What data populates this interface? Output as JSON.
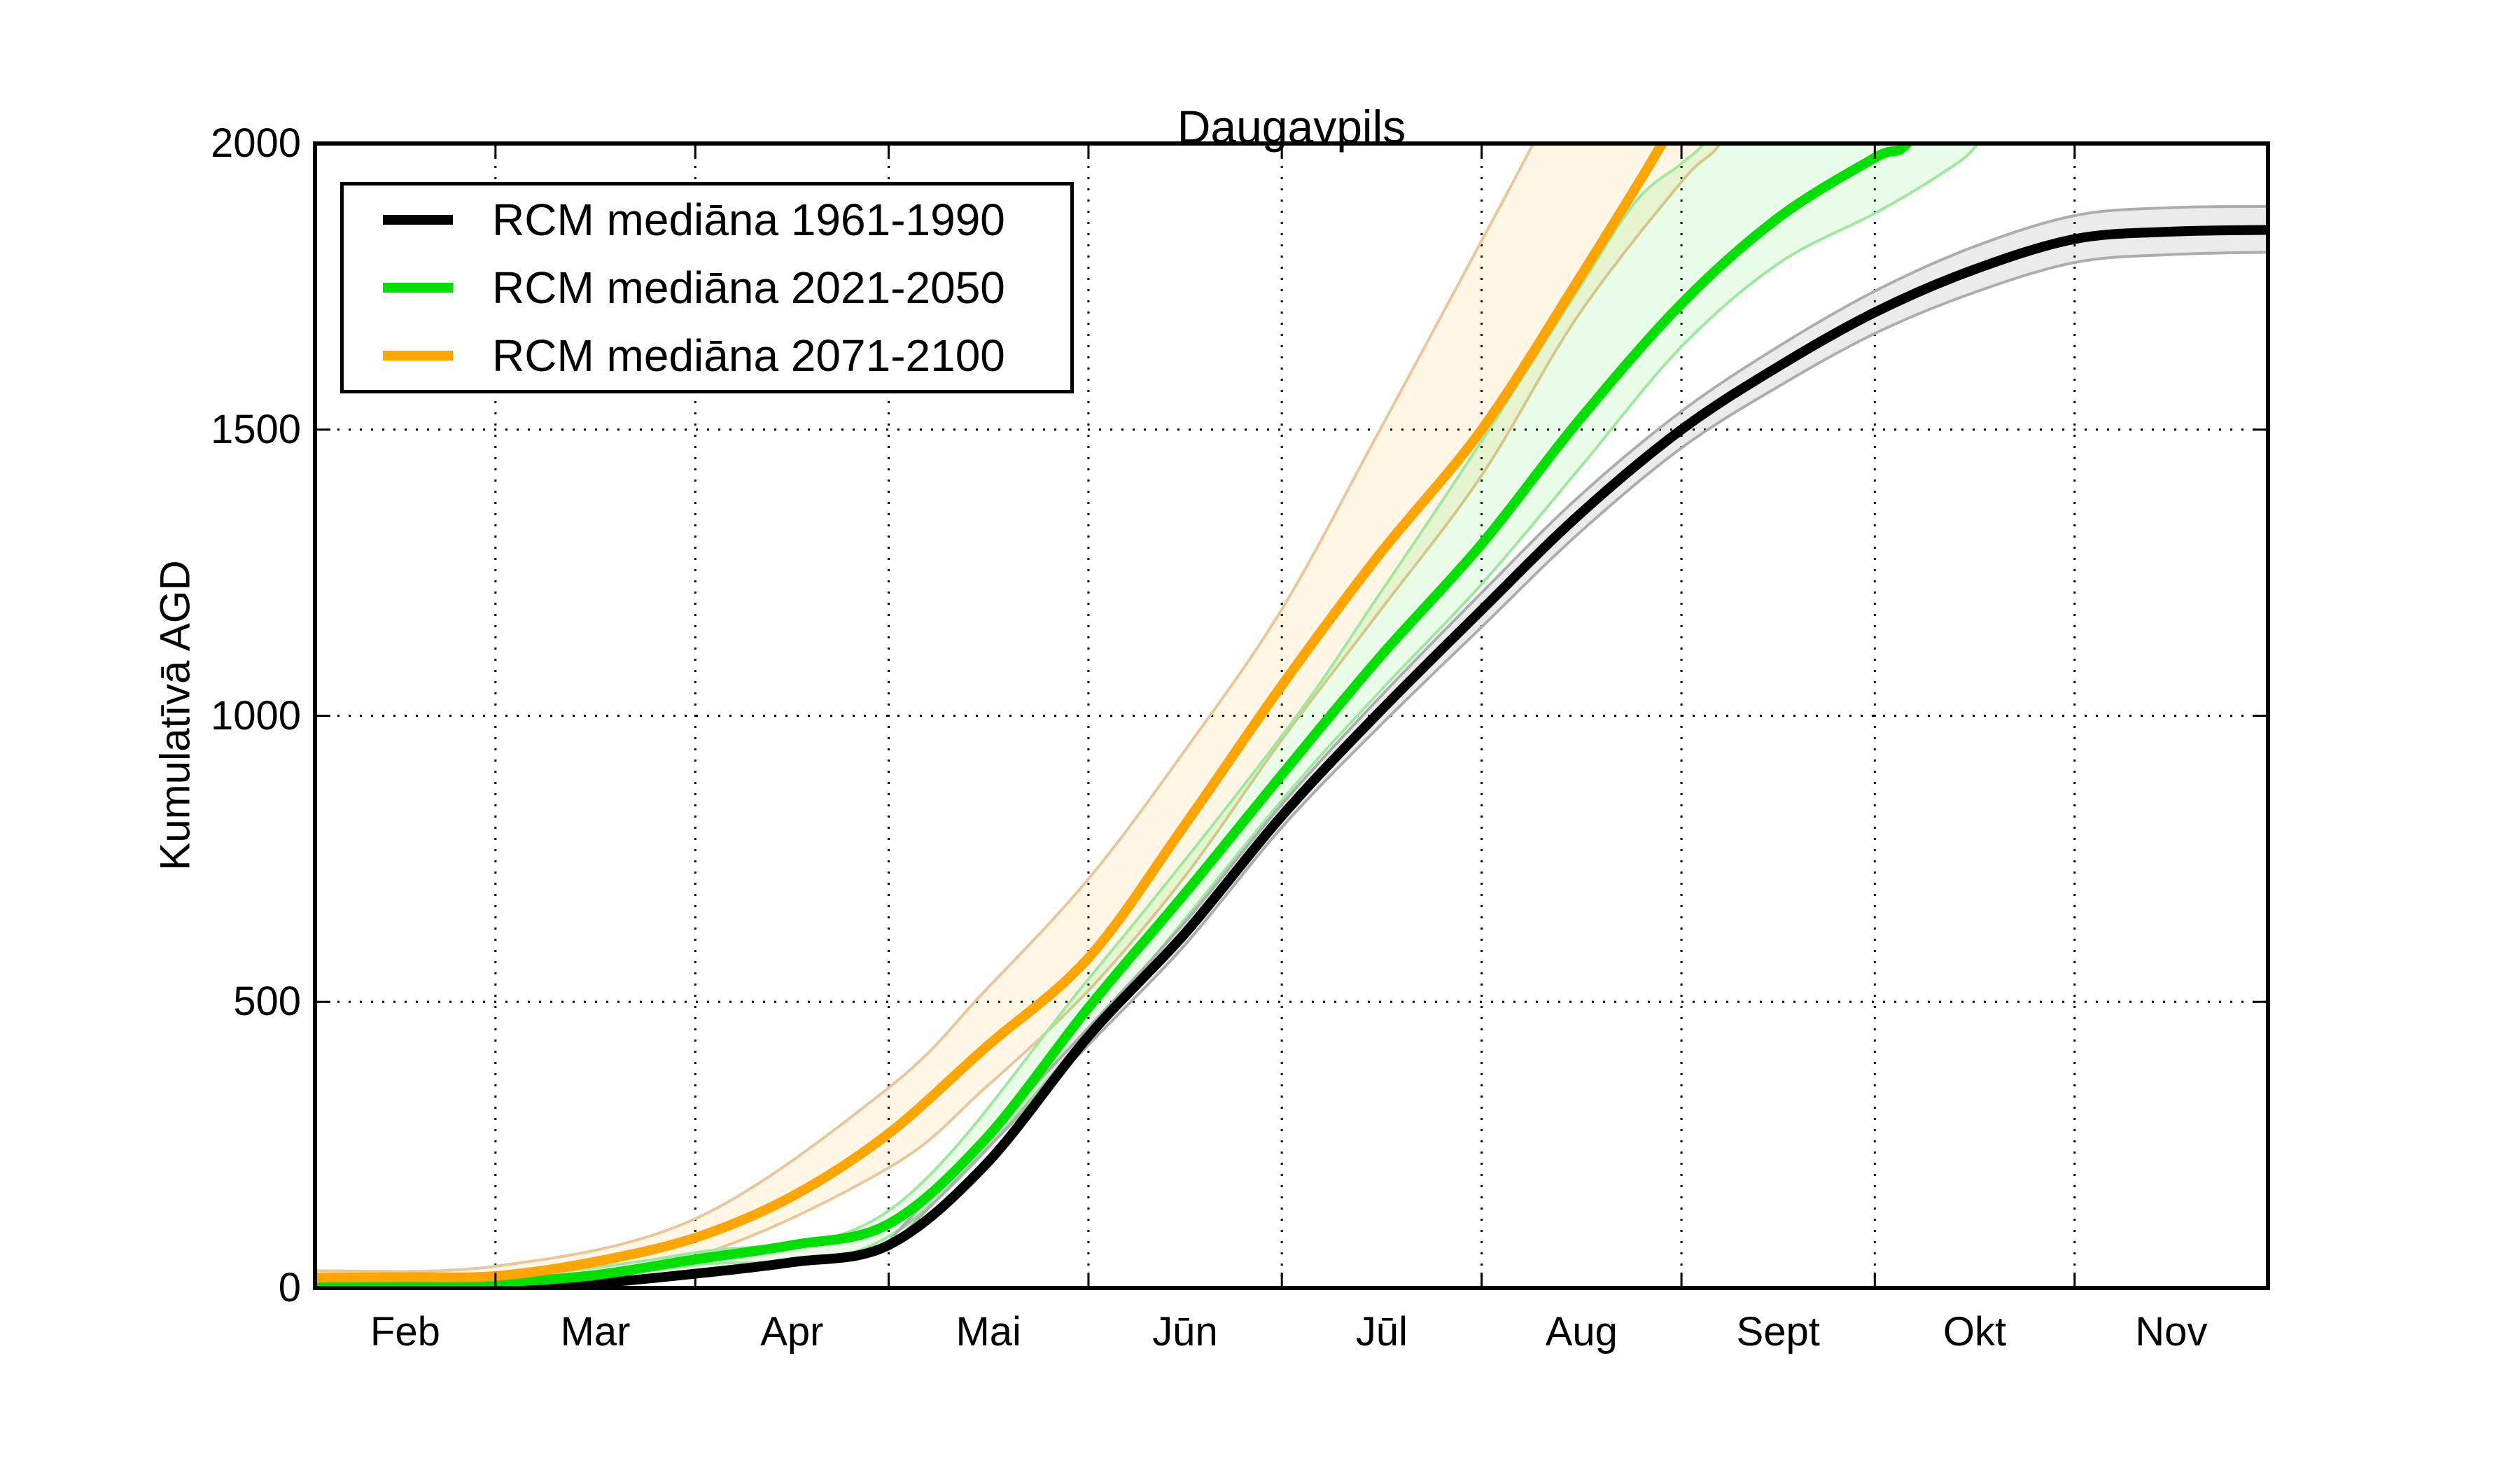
{
  "figure": {
    "title": "Daugavpils",
    "ylabel": "Kumulatīvā AGD"
  },
  "chart_data": {
    "type": "line",
    "title": "Daugavpils",
    "xlabel": "",
    "ylabel": "Kumulatīvā AGD",
    "ylim": [
      0,
      2000
    ],
    "yticks": [
      0,
      500,
      1000,
      1500,
      2000
    ],
    "y_gridlines": [
      500,
      1000,
      1500
    ],
    "grid": "dotted",
    "legend_position": "upper left",
    "x_axis": {
      "unit": "days since Feb 1",
      "total_days": 303,
      "month_boundary_days": [
        28,
        59,
        89,
        120,
        150,
        181,
        212,
        242,
        273
      ],
      "tick_labels": [
        {
          "label": "Feb",
          "day": 14
        },
        {
          "label": "Mar",
          "day": 43.5
        },
        {
          "label": "Apr",
          "day": 74
        },
        {
          "label": "Mai",
          "day": 104.5
        },
        {
          "label": "Jūn",
          "day": 135
        },
        {
          "label": "Jūl",
          "day": 165.5
        },
        {
          "label": "Aug",
          "day": 196.5
        },
        {
          "label": "Sept",
          "day": 227
        },
        {
          "label": "Okt",
          "day": 257.5
        },
        {
          "label": "Nov",
          "day": 288
        }
      ]
    },
    "series": [
      {
        "name": "RCM mediāna 1961-1990",
        "color": "#000000",
        "band_fill": "rgba(0,0,0,0.08)",
        "band_edge": "#ADADAD",
        "points": [
          [
            0,
            1
          ],
          [
            14,
            1
          ],
          [
            28,
            2
          ],
          [
            43,
            8
          ],
          [
            59,
            25
          ],
          [
            74,
            45
          ],
          [
            89,
            75
          ],
          [
            104,
            215
          ],
          [
            120,
            440
          ],
          [
            135,
            620
          ],
          [
            150,
            825
          ],
          [
            165,
            1005
          ],
          [
            181,
            1185
          ],
          [
            196,
            1350
          ],
          [
            212,
            1500
          ],
          [
            227,
            1610
          ],
          [
            242,
            1705
          ],
          [
            257,
            1778
          ],
          [
            273,
            1833
          ],
          [
            288,
            1846
          ],
          [
            303,
            1849
          ]
        ],
        "band_upper": [
          [
            89,
            82
          ],
          [
            120,
            455
          ],
          [
            135,
            640
          ],
          [
            150,
            845
          ],
          [
            165,
            1030
          ],
          [
            181,
            1215
          ],
          [
            196,
            1382
          ],
          [
            212,
            1532
          ],
          [
            227,
            1645
          ],
          [
            242,
            1742
          ],
          [
            257,
            1818
          ],
          [
            273,
            1874
          ],
          [
            288,
            1888
          ],
          [
            303,
            1890
          ]
        ],
        "band_lower": [
          [
            89,
            68
          ],
          [
            120,
            425
          ],
          [
            135,
            600
          ],
          [
            150,
            805
          ],
          [
            165,
            980
          ],
          [
            181,
            1155
          ],
          [
            196,
            1318
          ],
          [
            212,
            1468
          ],
          [
            227,
            1575
          ],
          [
            242,
            1668
          ],
          [
            257,
            1738
          ],
          [
            273,
            1792
          ],
          [
            288,
            1806
          ],
          [
            303,
            1810
          ]
        ]
      },
      {
        "name": "RCM mediāna 2021-2050",
        "color": "#00E000",
        "band_fill": "rgba(0,224,0,0.09)",
        "band_edge": "#9FE89F",
        "points": [
          [
            0,
            6
          ],
          [
            14,
            7
          ],
          [
            28,
            10
          ],
          [
            43,
            22
          ],
          [
            59,
            50
          ],
          [
            74,
            75
          ],
          [
            89,
            112
          ],
          [
            104,
            260
          ],
          [
            120,
            490
          ],
          [
            135,
            690
          ],
          [
            150,
            897
          ],
          [
            165,
            1100
          ],
          [
            181,
            1300
          ],
          [
            196,
            1515
          ],
          [
            212,
            1720
          ],
          [
            227,
            1870
          ],
          [
            242,
            1975
          ],
          [
            247,
            2000
          ],
          [
            254,
            2120
          ]
        ],
        "band_upper": [
          [
            0,
            10
          ],
          [
            28,
            18
          ],
          [
            59,
            62
          ],
          [
            89,
            135
          ],
          [
            120,
            540
          ],
          [
            150,
            965
          ],
          [
            165,
            1210
          ],
          [
            181,
            1480
          ],
          [
            196,
            1745
          ],
          [
            205,
            1900
          ],
          [
            212,
            1965
          ],
          [
            216,
            2010
          ],
          [
            221,
            2130
          ]
        ],
        "band_lower": [
          [
            0,
            3
          ],
          [
            28,
            6
          ],
          [
            59,
            40
          ],
          [
            89,
            90
          ],
          [
            120,
            445
          ],
          [
            150,
            852
          ],
          [
            165,
            1040
          ],
          [
            181,
            1230
          ],
          [
            196,
            1430
          ],
          [
            212,
            1645
          ],
          [
            227,
            1790
          ],
          [
            242,
            1878
          ],
          [
            252,
            1945
          ],
          [
            258,
            2000
          ],
          [
            264,
            2120
          ]
        ]
      },
      {
        "name": "RCM mediāna 2071-2100",
        "color": "#FFA500",
        "band_fill": "rgba(255,165,0,0.10)",
        "band_edge": "#E8C79A",
        "points": [
          [
            0,
            18
          ],
          [
            14,
            19
          ],
          [
            28,
            21
          ],
          [
            43,
            45
          ],
          [
            59,
            88
          ],
          [
            74,
            160
          ],
          [
            89,
            270
          ],
          [
            104,
            420
          ],
          [
            120,
            577
          ],
          [
            135,
            810
          ],
          [
            150,
            1053
          ],
          [
            165,
            1280
          ],
          [
            181,
            1500
          ],
          [
            196,
            1762
          ],
          [
            209,
            2000
          ],
          [
            215,
            2130
          ]
        ],
        "band_upper": [
          [
            0,
            30
          ],
          [
            28,
            38
          ],
          [
            59,
            121
          ],
          [
            89,
            350
          ],
          [
            104,
            520
          ],
          [
            120,
            715
          ],
          [
            135,
            940
          ],
          [
            150,
            1186
          ],
          [
            165,
            1495
          ],
          [
            181,
            1830
          ],
          [
            189,
            2000
          ],
          [
            195,
            2140
          ]
        ],
        "band_lower": [
          [
            0,
            8
          ],
          [
            28,
            8
          ],
          [
            59,
            56
          ],
          [
            89,
            210
          ],
          [
            104,
            350
          ],
          [
            120,
            520
          ],
          [
            135,
            720
          ],
          [
            150,
            958
          ],
          [
            165,
            1180
          ],
          [
            181,
            1420
          ],
          [
            196,
            1700
          ],
          [
            212,
            1933
          ],
          [
            218,
            2000
          ],
          [
            224,
            2130
          ]
        ]
      }
    ]
  }
}
